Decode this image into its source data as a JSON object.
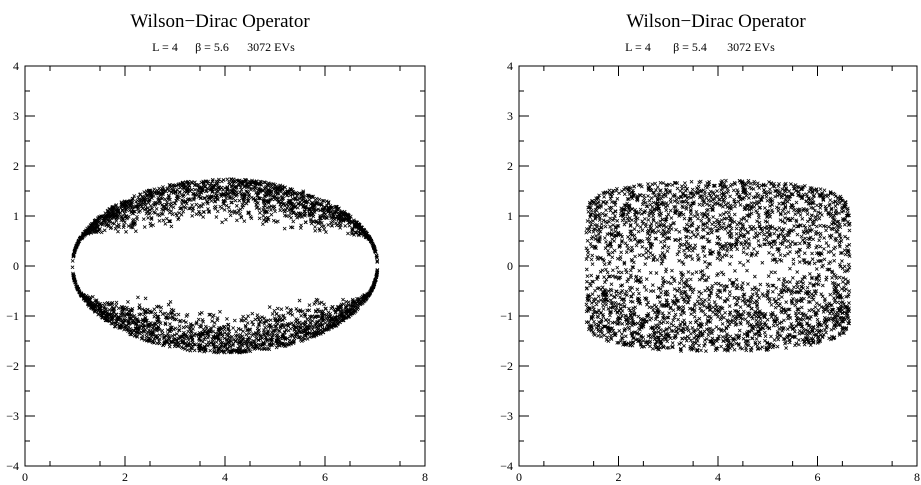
{
  "chart_data": [
    {
      "type": "scatter",
      "title": "Wilson−Dirac Operator",
      "subtitle_parts": [
        "L = 4",
        "β = 5.6",
        "3072 EVs"
      ],
      "xlim": [
        0,
        8
      ],
      "ylim": [
        -4,
        4
      ],
      "xticks": [
        0,
        2,
        4,
        6,
        8
      ],
      "yticks": [
        -4,
        -3,
        -2,
        -1,
        0,
        1,
        2,
        3,
        4
      ],
      "marker": "x",
      "point_count": 3072,
      "distribution": {
        "center_x": 4.0,
        "half_width": 3.05,
        "max_height": 1.72,
        "gap_outer": 0.38,
        "gap_inner": 0.45
      }
    },
    {
      "type": "scatter",
      "title": "Wilson−Dirac Operator",
      "subtitle_parts": [
        "L = 4",
        "β = 5.4",
        "3072 EVs"
      ],
      "xlim": [
        0,
        8
      ],
      "ylim": [
        -4,
        4
      ],
      "xticks": [
        0,
        2,
        4,
        6,
        8
      ],
      "yticks": [
        -4,
        -3,
        -2,
        -1,
        0,
        1,
        2,
        3,
        4
      ],
      "marker": "x",
      "point_count": 3072,
      "distribution": {
        "center_x": 4.0,
        "half_width": 2.65,
        "max_height": 1.72,
        "edge_height": 1.0
      }
    }
  ]
}
